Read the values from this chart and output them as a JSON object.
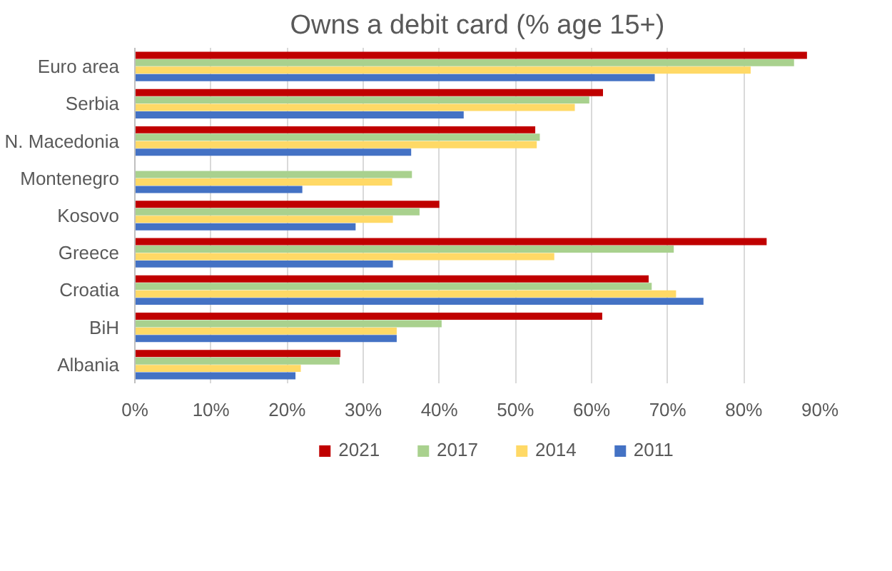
{
  "chart_data": {
    "type": "bar",
    "orientation": "horizontal",
    "title": "Owns a debit card (% age 15+)",
    "categories": [
      "Euro area",
      "Serbia",
      "N. Macedonia",
      "Montenegro",
      "Kosovo",
      "Greece",
      "Croatia",
      "BiH",
      "Albania"
    ],
    "series": [
      {
        "name": "2021",
        "color": "#c00000",
        "values": [
          88.3,
          61.5,
          52.6,
          null,
          40.0,
          83.0,
          67.5,
          61.4,
          27.0
        ]
      },
      {
        "name": "2017",
        "color": "#a9d18e",
        "values": [
          86.6,
          59.7,
          53.2,
          36.4,
          37.4,
          70.8,
          67.9,
          40.3,
          26.9
        ]
      },
      {
        "name": "2014",
        "color": "#ffd966",
        "values": [
          80.9,
          57.8,
          52.8,
          33.8,
          33.9,
          55.1,
          71.1,
          34.4,
          21.8
        ]
      },
      {
        "name": "2011",
        "color": "#4472c4",
        "values": [
          68.3,
          43.2,
          36.3,
          22.0,
          29.0,
          33.9,
          74.7,
          34.4,
          21.1
        ]
      }
    ],
    "xlim": [
      0,
      90
    ],
    "xticks": [
      {
        "value": 0,
        "label": "0%"
      },
      {
        "value": 10,
        "label": "10%"
      },
      {
        "value": 20,
        "label": "20%"
      },
      {
        "value": 30,
        "label": "30%"
      },
      {
        "value": 40,
        "label": "40%"
      },
      {
        "value": 50,
        "label": "50%"
      },
      {
        "value": 60,
        "label": "60%"
      },
      {
        "value": 70,
        "label": "70%"
      },
      {
        "value": 80,
        "label": "80%"
      },
      {
        "value": 90,
        "label": "90%"
      }
    ],
    "grid": "x",
    "legend": "bottom"
  }
}
